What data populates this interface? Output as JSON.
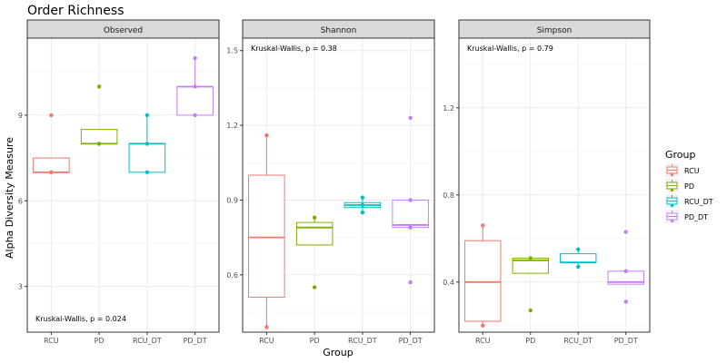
{
  "chart_data": {
    "type": "box",
    "title": "Order Richness",
    "xlabel": "Group",
    "ylabel": "Alpha Diversity Measure",
    "categories": [
      "RCU",
      "PD",
      "RCU_DT",
      "PD_DT"
    ],
    "colors": [
      "#F8766D",
      "#7CAE00",
      "#00BFC4",
      "#C77CFF"
    ],
    "legend": {
      "title": "Group",
      "position": "right"
    },
    "grid": true,
    "panels": [
      {
        "strip": "Observed",
        "annotation": "Kruskal-Wallis, p = 0.024",
        "annotation_position": "bottom-left",
        "ylim": [
          1.4,
          11.7
        ],
        "yticks": [
          3,
          6,
          9
        ],
        "ytick_labels": [
          "3",
          "6",
          "9"
        ],
        "boxes": [
          {
            "q1": 7.0,
            "median": 7.0,
            "q3": 7.5,
            "whisker_low": 7.0,
            "whisker_high": 7.5,
            "points": [
              7.0,
              7.0,
              9.0
            ],
            "outliers": [
              9.0
            ]
          },
          {
            "q1": 8.0,
            "median": 8.0,
            "q3": 8.5,
            "whisker_low": 8.0,
            "whisker_high": 8.5,
            "points": [
              8.0,
              8.0,
              10.0
            ],
            "outliers": [
              10.0
            ]
          },
          {
            "q1": 7.0,
            "median": 8.0,
            "q3": 8.0,
            "whisker_low": 7.0,
            "whisker_high": 9.0,
            "points": [
              7.0,
              8.0,
              9.0
            ],
            "outliers": []
          },
          {
            "q1": 9.0,
            "median": 10.0,
            "q3": 10.0,
            "whisker_low": 9.0,
            "whisker_high": 11.0,
            "points": [
              9.0,
              10.0,
              11.0
            ],
            "outliers": []
          }
        ]
      },
      {
        "strip": "Shannon",
        "annotation": "Kruskal-Wallis, p = 0.38",
        "annotation_position": "top-left",
        "ylim": [
          0.37,
          1.55
        ],
        "yticks": [
          0.6,
          0.9,
          1.2,
          1.5
        ],
        "ytick_labels": [
          "0.6",
          "0.9",
          "1.2",
          "1.5"
        ],
        "boxes": [
          {
            "q1": 0.51,
            "median": 0.75,
            "q3": 1.0,
            "whisker_low": 0.39,
            "whisker_high": 1.16,
            "points": [
              0.39,
              1.16
            ],
            "outliers": []
          },
          {
            "q1": 0.72,
            "median": 0.79,
            "q3": 0.81,
            "whisker_low": 0.72,
            "whisker_high": 0.83,
            "points": [
              0.55,
              0.83
            ],
            "outliers": [
              0.55
            ]
          },
          {
            "q1": 0.87,
            "median": 0.88,
            "q3": 0.89,
            "whisker_low": 0.85,
            "whisker_high": 0.91,
            "points": [
              0.85,
              0.88,
              0.91
            ],
            "outliers": []
          },
          {
            "q1": 0.79,
            "median": 0.8,
            "q3": 0.9,
            "whisker_low": 0.79,
            "whisker_high": 0.9,
            "points": [
              0.57,
              0.79,
              0.9,
              1.23
            ],
            "outliers": [
              0.57,
              1.23
            ]
          }
        ]
      },
      {
        "strip": "Simpson",
        "annotation": "Kruskal-Wallis, p = 0.79",
        "annotation_position": "top-left",
        "ylim": [
          0.17,
          1.52
        ],
        "yticks": [
          0.4,
          0.8,
          1.2
        ],
        "ytick_labels": [
          "0.4",
          "0.8",
          "1.2"
        ],
        "boxes": [
          {
            "q1": 0.22,
            "median": 0.4,
            "q3": 0.59,
            "whisker_low": 0.2,
            "whisker_high": 0.66,
            "points": [
              0.2,
              0.66
            ],
            "outliers": []
          },
          {
            "q1": 0.44,
            "median": 0.5,
            "q3": 0.51,
            "whisker_low": 0.44,
            "whisker_high": 0.51,
            "points": [
              0.27,
              0.51
            ],
            "outliers": [
              0.27
            ]
          },
          {
            "q1": 0.49,
            "median": 0.49,
            "q3": 0.53,
            "whisker_low": 0.47,
            "whisker_high": 0.55,
            "points": [
              0.47,
              0.55
            ],
            "outliers": []
          },
          {
            "q1": 0.39,
            "median": 0.4,
            "q3": 0.45,
            "whisker_low": 0.39,
            "whisker_high": 0.46,
            "points": [
              0.31,
              0.45,
              0.63
            ],
            "outliers": [
              0.31,
              0.63
            ]
          }
        ]
      }
    ]
  }
}
